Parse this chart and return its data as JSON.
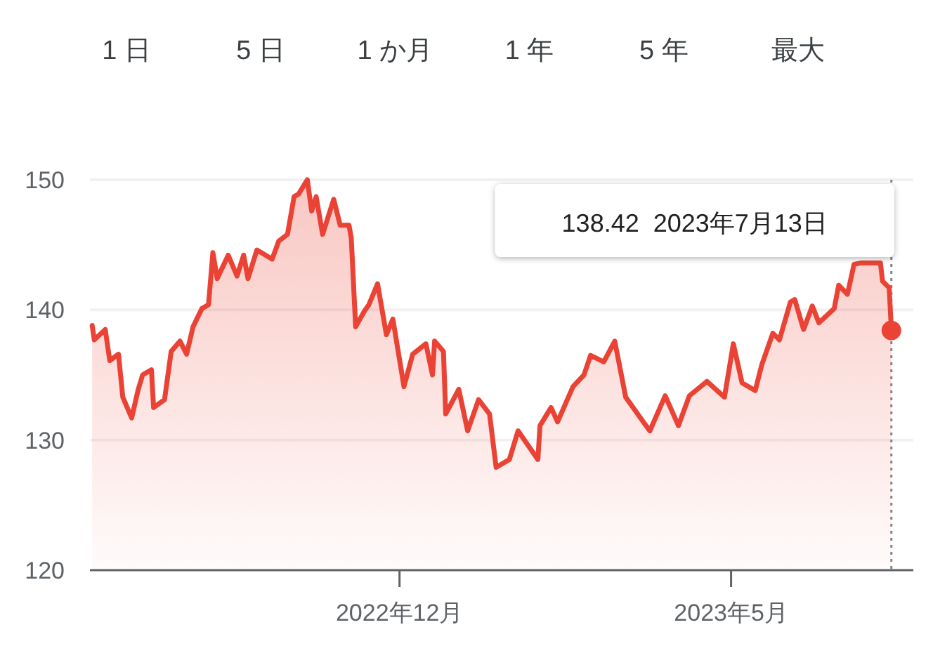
{
  "chart_data": {
    "type": "area",
    "annotations": [
      "1 日",
      "5 日",
      "1 か月",
      "1 年",
      "5 年",
      "最大",
      "138.42  2023年7月13日"
    ],
    "x": [
      "2022-07-14",
      "2022-07-15",
      "2022-07-20",
      "2022-07-22",
      "2022-07-26",
      "2022-07-28",
      "2022-08-01",
      "2022-08-04",
      "2022-08-06",
      "2022-08-10",
      "2022-08-11",
      "2022-08-16",
      "2022-08-19",
      "2022-08-23",
      "2022-08-26",
      "2022-08-29",
      "2022-09-02",
      "2022-09-05",
      "2022-09-07",
      "2022-09-09",
      "2022-09-14",
      "2022-09-18",
      "2022-09-21",
      "2022-09-23",
      "2022-09-27",
      "2022-10-04",
      "2022-10-07",
      "2022-10-11",
      "2022-10-14",
      "2022-10-16",
      "2022-10-20",
      "2022-10-22",
      "2022-10-24",
      "2022-10-27",
      "2022-11-01",
      "2022-11-04",
      "2022-11-08",
      "2022-11-09",
      "2022-11-11",
      "2022-11-15",
      "2022-11-17",
      "2022-11-21",
      "2022-11-25",
      "2022-11-28",
      "2022-12-03",
      "2022-12-07",
      "2022-12-13",
      "2022-12-16",
      "2022-12-17",
      "2022-12-21",
      "2022-12-22",
      "2022-12-28",
      "2023-01-01",
      "2023-01-06",
      "2023-01-11",
      "2023-01-14",
      "2023-01-20",
      "2023-01-24",
      "2023-02-02",
      "2023-02-03",
      "2023-02-08",
      "2023-02-11",
      "2023-02-18",
      "2023-02-23",
      "2023-02-26",
      "2023-03-04",
      "2023-03-09",
      "2023-03-14",
      "2023-03-22",
      "2023-03-25",
      "2023-04-01",
      "2023-04-07",
      "2023-04-12",
      "2023-04-20",
      "2023-04-28",
      "2023-05-02",
      "2023-05-06",
      "2023-05-12",
      "2023-05-15",
      "2023-05-20",
      "2023-05-23",
      "2023-05-28",
      "2023-05-30",
      "2023-06-03",
      "2023-06-07",
      "2023-06-10",
      "2023-06-17",
      "2023-06-19",
      "2023-06-23",
      "2023-06-26",
      "2023-06-29",
      "2023-07-04",
      "2023-07-08",
      "2023-07-09",
      "2023-07-12",
      "2023-07-13"
    ],
    "series": [
      {
        "color": "#ea4335",
        "values": [
          138.8,
          137.7,
          138.5,
          136.1,
          136.6,
          133.3,
          131.7,
          133.9,
          135.0,
          135.4,
          132.5,
          133.1,
          136.8,
          137.6,
          136.6,
          138.7,
          140.1,
          140.4,
          144.4,
          142.4,
          144.2,
          142.6,
          144.2,
          142.4,
          144.6,
          143.9,
          145.3,
          145.8,
          148.7,
          148.9,
          150.0,
          147.6,
          148.7,
          145.8,
          148.5,
          146.5,
          146.5,
          145.5,
          138.7,
          139.9,
          140.4,
          142.0,
          138.1,
          139.3,
          134.1,
          136.6,
          137.4,
          135.0,
          137.6,
          136.8,
          132.0,
          133.9,
          130.7,
          133.1,
          132.0,
          127.9,
          128.5,
          130.7,
          128.5,
          131.1,
          132.5,
          131.4,
          134.1,
          135.0,
          136.5,
          136.0,
          137.6,
          133.3,
          131.4,
          130.7,
          133.4,
          131.1,
          133.4,
          134.5,
          133.3,
          137.4,
          134.4,
          133.8,
          135.8,
          138.2,
          137.7,
          140.6,
          140.8,
          138.5,
          140.3,
          139.0,
          140.1,
          141.9,
          141.2,
          143.5,
          143.6,
          143.6,
          143.6,
          142.2,
          141.7,
          138.42
        ]
      }
    ],
    "xlim": [
      "2022-07-13",
      "2023-07-23"
    ],
    "xticks": [
      {
        "value": "2022-12-01",
        "label": "2022年12月"
      },
      {
        "value": "2023-05-01",
        "label": "2023年5月"
      }
    ],
    "ylim": [
      120,
      150
    ],
    "yticks": [
      120,
      130,
      140,
      150
    ],
    "grid": "y",
    "marker": "none",
    "line_style": "solid",
    "ref_lines": [
      {
        "axis": "x",
        "value": "2023-07-13",
        "line_style": "dotted",
        "color": "#80868b"
      }
    ]
  }
}
